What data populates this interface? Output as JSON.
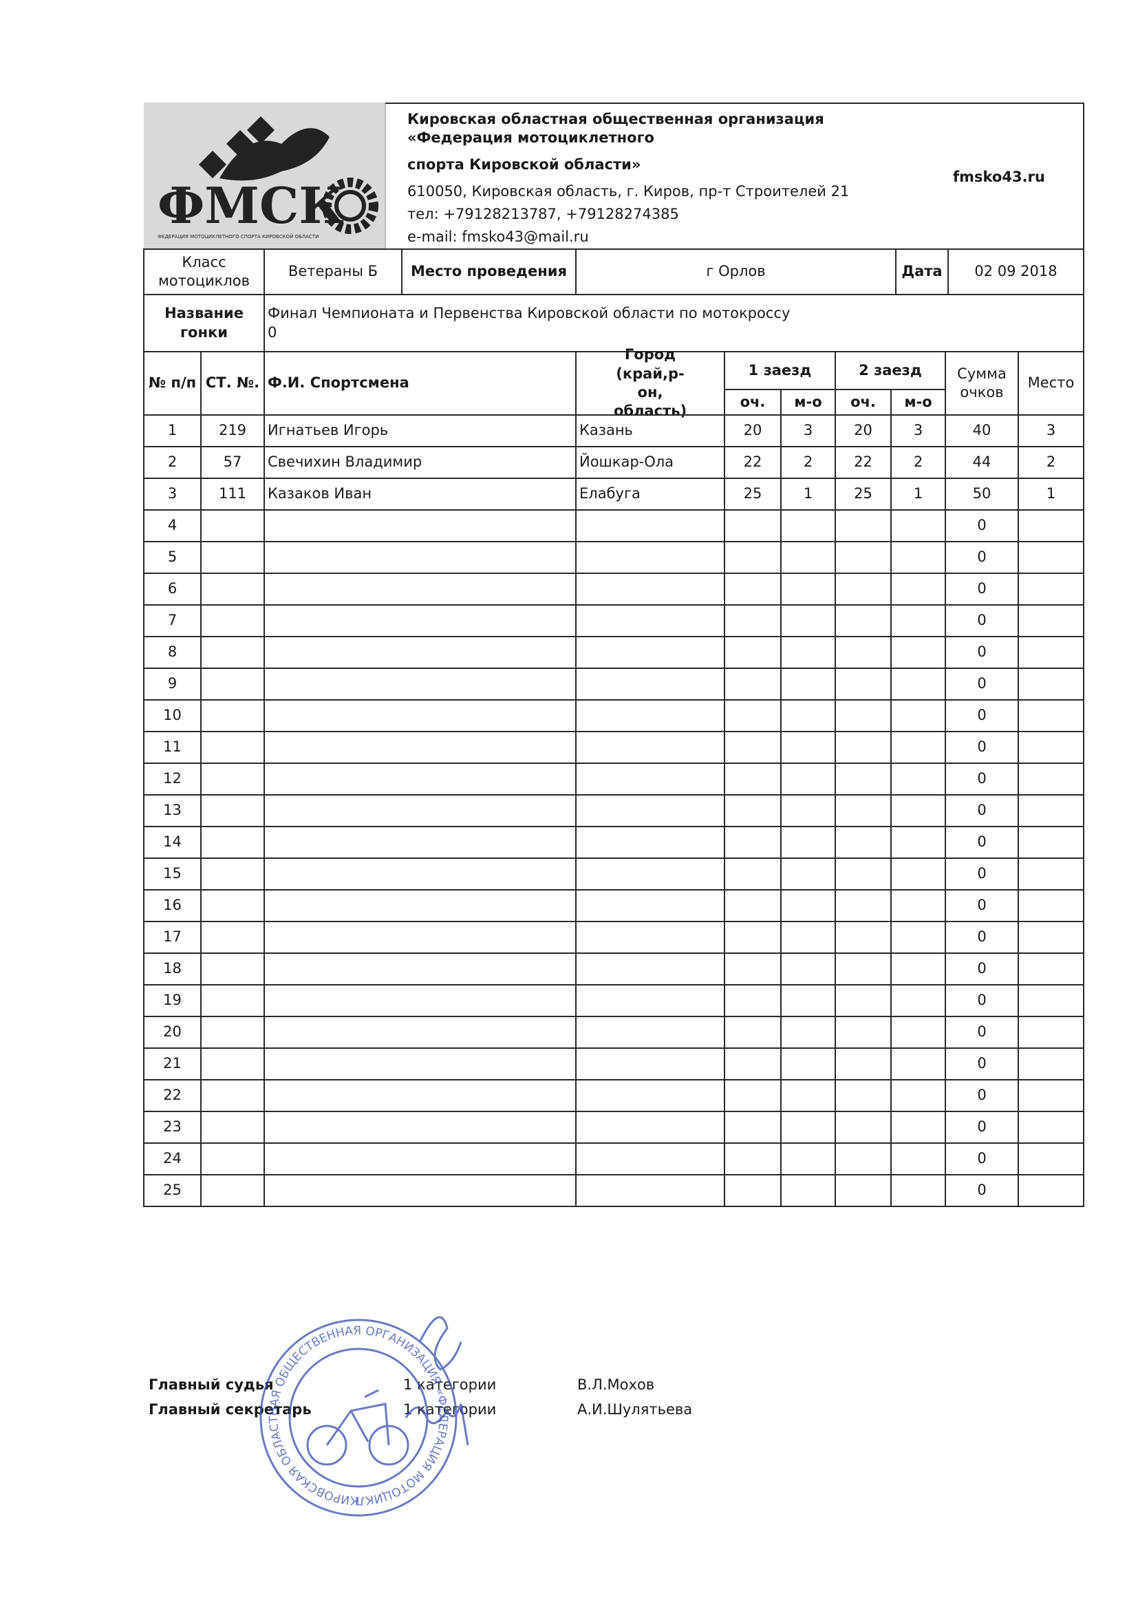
{
  "header": {
    "logo": {
      "text": "ФМСК",
      "caption": "ФЕДЕРАЦИЯ МОТОЦИКЛЕТНОГО СПОРТА КИРОВСКОЙ ОБЛАСТИ"
    },
    "organization": [
      "Кировская областная общественная организация",
      "«Федерация мотоциклетного",
      "спорта Кировской области»"
    ],
    "address": "610050, Кировская область, г. Киров, пр-т Строителей 21",
    "phone": "тел: +79128213787, +79128274385",
    "email": "e-mail: fmsko43@mail.ru",
    "site": "fmsko43.ru"
  },
  "race": {
    "class_label": "Класс мотоциклов",
    "class": "Ветераны Б",
    "venue_label": "Место проведения",
    "venue": "г Орлов",
    "date_label": "Дата",
    "date": "02 09 2018",
    "name_label": "Название гонки",
    "name": "Финал  Чемпионата и Первенства Кировской области по мотокроссу",
    "name_extra": "0"
  },
  "table": {
    "columns": {
      "no": "№ п/п",
      "st": "СТ. №.",
      "name": "Ф.И. Спортсмена",
      "city": "Город (край,р-он, область)",
      "heat1": "1 заезд",
      "heat2": "2 заезд",
      "points": "оч.",
      "place_short": "м-о",
      "sum": "Сумма очков",
      "place": "Место"
    },
    "rows": [
      {
        "no": 1,
        "st": 219,
        "name": "Игнатьев Игорь",
        "city": "Казань",
        "r1_points": 20,
        "r1_place": 3,
        "r2_points": 20,
        "r2_place": 3,
        "sum": 40,
        "place": 3
      },
      {
        "no": 2,
        "st": 57,
        "name": "Свечихин Владимир",
        "city": "Йошкар-Ола",
        "r1_points": 22,
        "r1_place": 2,
        "r2_points": 22,
        "r2_place": 2,
        "sum": 44,
        "place": 2
      },
      {
        "no": 3,
        "st": 111,
        "name": "Казаков Иван",
        "city": "Елабуга",
        "r1_points": 25,
        "r1_place": 1,
        "r2_points": 25,
        "r2_place": 1,
        "sum": 50,
        "place": 1
      },
      {
        "no": 4,
        "sum": 0
      },
      {
        "no": 5,
        "sum": 0
      },
      {
        "no": 6,
        "sum": 0
      },
      {
        "no": 7,
        "sum": 0
      },
      {
        "no": 8,
        "sum": 0
      },
      {
        "no": 9,
        "sum": 0
      },
      {
        "no": 10,
        "sum": 0
      },
      {
        "no": 11,
        "sum": 0
      },
      {
        "no": 12,
        "sum": 0
      },
      {
        "no": 13,
        "sum": 0
      },
      {
        "no": 14,
        "sum": 0
      },
      {
        "no": 15,
        "sum": 0
      },
      {
        "no": 16,
        "sum": 0
      },
      {
        "no": 17,
        "sum": 0
      },
      {
        "no": 18,
        "sum": 0
      },
      {
        "no": 19,
        "sum": 0
      },
      {
        "no": 20,
        "sum": 0
      },
      {
        "no": 21,
        "sum": 0
      },
      {
        "no": 22,
        "sum": 0
      },
      {
        "no": 23,
        "sum": 0
      },
      {
        "no": 24,
        "sum": 0
      },
      {
        "no": 25,
        "sum": 0
      }
    ]
  },
  "signatures": [
    {
      "role": "Главный судья",
      "category": "1 категории",
      "name": "В.Л.Мохов"
    },
    {
      "role": "Главный секретарь",
      "category": "1 категории",
      "name": "А.И.Шулятьева"
    }
  ],
  "stamp": {
    "text": "КИРОВСКАЯ ОБЛАСТНАЯ ОБЩЕСТВЕННАЯ ОРГАНИЗАЦИЯ «ФЕДЕРАЦИЯ МОТОЦИКЛЕТНОГО СПОРТА КИРОВСКОЙ ОБЛАСТИ»"
  }
}
